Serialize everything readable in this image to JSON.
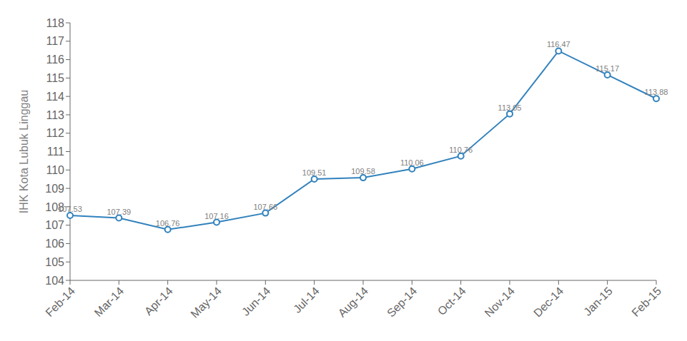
{
  "chart_data": {
    "type": "line",
    "categories": [
      "Feb-14",
      "Mar-14",
      "Apr-14",
      "May-14",
      "Jun-14",
      "Jul-14",
      "Aug-14",
      "Sep-14",
      "Oct-14",
      "Nov-14",
      "Dec-14",
      "Jan-15",
      "Feb-15"
    ],
    "values": [
      107.53,
      107.39,
      106.76,
      107.16,
      107.66,
      109.51,
      109.58,
      110.06,
      110.76,
      113.05,
      116.47,
      115.17,
      113.88
    ],
    "y_label": "IHK Kota Lubuk Linggau",
    "ylim": [
      104,
      118
    ],
    "yticks": [
      104,
      105,
      106,
      107,
      108,
      109,
      110,
      111,
      112,
      113,
      114,
      115,
      116,
      117,
      118
    ],
    "grid": false,
    "data_labels": true
  }
}
